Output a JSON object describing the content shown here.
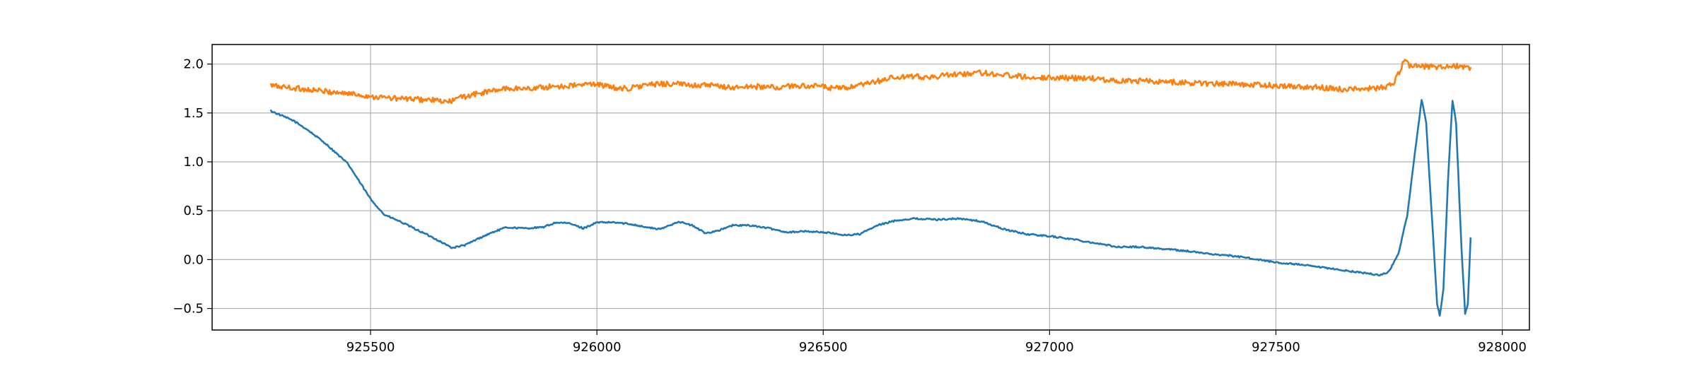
{
  "chart_data": {
    "type": "line",
    "title": "",
    "xlabel": "",
    "ylabel": "",
    "xlim": [
      925150,
      928060
    ],
    "ylim": [
      -0.72,
      2.2
    ],
    "grid": true,
    "x_ticks": [
      925500,
      926000,
      926500,
      927000,
      927500,
      928000
    ],
    "x_tick_labels": [
      "925500",
      "926000",
      "926500",
      "927000",
      "927500",
      "928000"
    ],
    "y_ticks": [
      -0.5,
      0.0,
      0.5,
      1.0,
      1.5,
      2.0
    ],
    "y_tick_labels": [
      "−0.5",
      "0.0",
      "0.5",
      "1.0",
      "1.5",
      "2.0"
    ],
    "series": [
      {
        "color": "#1f77b4",
        "noise": 0.008,
        "points": [
          [
            925280,
            1.52
          ],
          [
            925300,
            1.48
          ],
          [
            925330,
            1.42
          ],
          [
            925360,
            1.33
          ],
          [
            925400,
            1.19
          ],
          [
            925450,
            0.98
          ],
          [
            925500,
            0.62
          ],
          [
            925530,
            0.46
          ],
          [
            925560,
            0.4
          ],
          [
            925600,
            0.31
          ],
          [
            925640,
            0.22
          ],
          [
            925680,
            0.12
          ],
          [
            925710,
            0.15
          ],
          [
            925740,
            0.22
          ],
          [
            925770,
            0.28
          ],
          [
            925800,
            0.33
          ],
          [
            925840,
            0.32
          ],
          [
            925880,
            0.33
          ],
          [
            925910,
            0.38
          ],
          [
            925940,
            0.37
          ],
          [
            925970,
            0.32
          ],
          [
            926000,
            0.38
          ],
          [
            926040,
            0.38
          ],
          [
            926080,
            0.36
          ],
          [
            926110,
            0.33
          ],
          [
            926140,
            0.31
          ],
          [
            926180,
            0.39
          ],
          [
            926210,
            0.35
          ],
          [
            926240,
            0.27
          ],
          [
            926270,
            0.3
          ],
          [
            926300,
            0.35
          ],
          [
            926340,
            0.35
          ],
          [
            926380,
            0.32
          ],
          [
            926420,
            0.28
          ],
          [
            926460,
            0.29
          ],
          [
            926500,
            0.28
          ],
          [
            926550,
            0.25
          ],
          [
            926580,
            0.26
          ],
          [
            926620,
            0.35
          ],
          [
            926660,
            0.4
          ],
          [
            926700,
            0.42
          ],
          [
            926750,
            0.41
          ],
          [
            926800,
            0.42
          ],
          [
            926850,
            0.39
          ],
          [
            926900,
            0.31
          ],
          [
            926950,
            0.26
          ],
          [
            927000,
            0.24
          ],
          [
            927050,
            0.21
          ],
          [
            927100,
            0.17
          ],
          [
            927150,
            0.13
          ],
          [
            927200,
            0.13
          ],
          [
            927250,
            0.11
          ],
          [
            927300,
            0.09
          ],
          [
            927350,
            0.06
          ],
          [
            927400,
            0.04
          ],
          [
            927450,
            0.01
          ],
          [
            927500,
            -0.03
          ],
          [
            927550,
            -0.05
          ],
          [
            927600,
            -0.08
          ],
          [
            927650,
            -0.11
          ],
          [
            927700,
            -0.14
          ],
          [
            927730,
            -0.16
          ],
          [
            927750,
            -0.12
          ],
          [
            927770,
            0.05
          ],
          [
            927790,
            0.45
          ],
          [
            927810,
            1.2
          ],
          [
            927822,
            1.64
          ],
          [
            927832,
            1.4
          ],
          [
            927845,
            0.4
          ],
          [
            927856,
            -0.45
          ],
          [
            927862,
            -0.58
          ],
          [
            927870,
            -0.3
          ],
          [
            927880,
            0.8
          ],
          [
            927890,
            1.63
          ],
          [
            927898,
            1.4
          ],
          [
            927910,
            0.1
          ],
          [
            927918,
            -0.55
          ],
          [
            927924,
            -0.45
          ],
          [
            927930,
            0.22
          ]
        ]
      },
      {
        "color": "#ff7f0e",
        "noise": 0.028,
        "points": [
          [
            925280,
            1.78
          ],
          [
            925320,
            1.76
          ],
          [
            925360,
            1.74
          ],
          [
            925400,
            1.72
          ],
          [
            925450,
            1.7
          ],
          [
            925500,
            1.67
          ],
          [
            925550,
            1.65
          ],
          [
            925600,
            1.64
          ],
          [
            925640,
            1.63
          ],
          [
            925670,
            1.61
          ],
          [
            925700,
            1.66
          ],
          [
            925750,
            1.71
          ],
          [
            925800,
            1.75
          ],
          [
            925850,
            1.75
          ],
          [
            925900,
            1.77
          ],
          [
            925950,
            1.78
          ],
          [
            926000,
            1.8
          ],
          [
            926030,
            1.76
          ],
          [
            926070,
            1.75
          ],
          [
            926100,
            1.78
          ],
          [
            926150,
            1.8
          ],
          [
            926200,
            1.79
          ],
          [
            926250,
            1.78
          ],
          [
            926300,
            1.76
          ],
          [
            926350,
            1.77
          ],
          [
            926400,
            1.76
          ],
          [
            926450,
            1.78
          ],
          [
            926500,
            1.77
          ],
          [
            926520,
            1.75
          ],
          [
            926560,
            1.76
          ],
          [
            926600,
            1.8
          ],
          [
            926650,
            1.86
          ],
          [
            926700,
            1.87
          ],
          [
            926750,
            1.87
          ],
          [
            926800,
            1.9
          ],
          [
            926850,
            1.91
          ],
          [
            926900,
            1.89
          ],
          [
            926950,
            1.87
          ],
          [
            927000,
            1.86
          ],
          [
            927050,
            1.86
          ],
          [
            927100,
            1.85
          ],
          [
            927150,
            1.83
          ],
          [
            927200,
            1.83
          ],
          [
            927250,
            1.82
          ],
          [
            927300,
            1.81
          ],
          [
            927350,
            1.8
          ],
          [
            927400,
            1.8
          ],
          [
            927450,
            1.79
          ],
          [
            927500,
            1.78
          ],
          [
            927550,
            1.77
          ],
          [
            927600,
            1.76
          ],
          [
            927650,
            1.74
          ],
          [
            927700,
            1.75
          ],
          [
            927740,
            1.76
          ],
          [
            927760,
            1.8
          ],
          [
            927775,
            1.94
          ],
          [
            927785,
            2.05
          ],
          [
            927795,
            1.99
          ],
          [
            927850,
            1.97
          ],
          [
            927900,
            1.98
          ],
          [
            927930,
            1.96
          ]
        ]
      }
    ]
  }
}
